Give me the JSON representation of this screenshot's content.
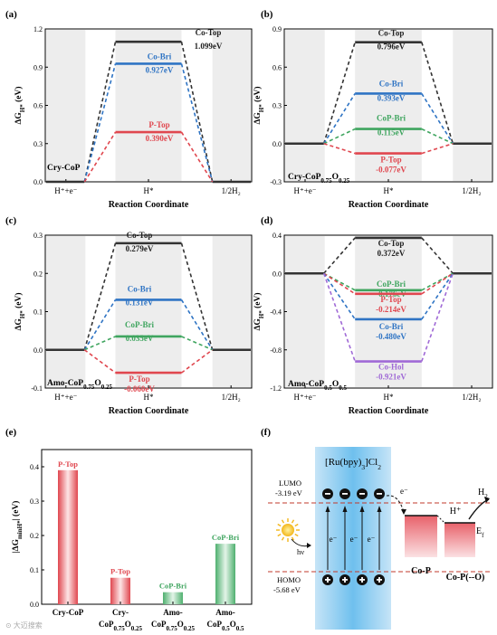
{
  "chart_data": [
    {
      "type": "line",
      "panel": "(a)",
      "system": "Cry-CoP",
      "xlabel": "Reaction Coordinate",
      "ylabel": "ΔG_H* (eV)",
      "x_ticks": [
        "H⁺+e⁻",
        "H*",
        "1/2H₂"
      ],
      "ylim": [
        0.0,
        1.2
      ],
      "y_ticks": [
        "0.0",
        "0.3",
        "0.6",
        "0.9",
        "1.2"
      ],
      "series": [
        {
          "name": "Co-Top",
          "value": 1.099,
          "label": "1.099eV",
          "color": "#333333"
        },
        {
          "name": "Co-Bri",
          "value": 0.927,
          "label": "0.927eV",
          "color": "#2f74c4"
        },
        {
          "name": "P-Top",
          "value": 0.39,
          "label": "0.390eV",
          "color": "#e0474f"
        }
      ]
    },
    {
      "type": "line",
      "panel": "(b)",
      "system": "Cry-CoP0.75O0.25",
      "xlabel": "Reaction Coordinate",
      "ylabel": "ΔG_H* (eV)",
      "x_ticks": [
        "H⁺+e⁻",
        "H*",
        "1/2H₂"
      ],
      "ylim": [
        -0.3,
        0.9
      ],
      "y_ticks": [
        "-0.3",
        "0.0",
        "0.3",
        "0.6",
        "0.9"
      ],
      "series": [
        {
          "name": "Co-Top",
          "value": 0.796,
          "label": "0.796eV",
          "color": "#333333"
        },
        {
          "name": "Co-Bri",
          "value": 0.393,
          "label": "0.393eV",
          "color": "#2f74c4"
        },
        {
          "name": "CoP-Bri",
          "value": 0.115,
          "label": "0.115eV",
          "color": "#3fa55f"
        },
        {
          "name": "P-Top",
          "value": -0.077,
          "label": "-0.077eV",
          "color": "#e0474f"
        }
      ]
    },
    {
      "type": "line",
      "panel": "(c)",
      "system": "Amo-CoP0.75O0.25",
      "xlabel": "Reaction Coordinate",
      "ylabel": "ΔG_H* (eV)",
      "x_ticks": [
        "H⁺+e⁻",
        "H*",
        "1/2H₂"
      ],
      "ylim": [
        -0.1,
        0.3
      ],
      "y_ticks": [
        "-0.1",
        "0.0",
        "0.1",
        "0.2",
        "0.3"
      ],
      "series": [
        {
          "name": "Co-Top",
          "value": 0.279,
          "label": "0.279eV",
          "color": "#333333"
        },
        {
          "name": "Co-Bri",
          "value": 0.131,
          "label": "0.131eV",
          "color": "#2f74c4"
        },
        {
          "name": "CoP-Bri",
          "value": 0.035,
          "label": "0.035eV",
          "color": "#3fa55f"
        },
        {
          "name": "P-Top",
          "value": -0.06,
          "label": "-0.060eV",
          "color": "#e0474f"
        }
      ]
    },
    {
      "type": "line",
      "panel": "(d)",
      "system": "Amo-CoP0.5O0.5",
      "xlabel": "Reaction Coordinate",
      "ylabel": "ΔG_H* (eV)",
      "x_ticks": [
        "H⁺+e⁻",
        "H*",
        "1/2H₂"
      ],
      "ylim": [
        -1.2,
        0.4
      ],
      "y_ticks": [
        "-1.2",
        "-0.8",
        "-0.4",
        "0.0",
        "0.4"
      ],
      "series": [
        {
          "name": "Co-Top",
          "value": 0.372,
          "label": "0.372eV",
          "color": "#333333"
        },
        {
          "name": "CoP-Bri",
          "value": -0.176,
          "label": "-0.176eV",
          "color": "#3fa55f"
        },
        {
          "name": "P-Top",
          "value": -0.214,
          "label": "-0.214eV",
          "color": "#e0474f"
        },
        {
          "name": "Co-Bri",
          "value": -0.48,
          "label": "-0.480eV",
          "color": "#2f74c4"
        },
        {
          "name": "Co-Hol",
          "value": -0.921,
          "label": "-0.921eV",
          "color": "#a06ad6"
        }
      ]
    },
    {
      "type": "bar",
      "panel": "(e)",
      "ylabel": "|ΔG_minH*| (eV)",
      "ylim": [
        0.0,
        0.45
      ],
      "y_ticks": [
        "0.0",
        "0.1",
        "0.2",
        "0.3",
        "0.4"
      ],
      "categories": [
        "Cry-CoP",
        "Cry-CoP0.75O0.25",
        "Amo-CoP0.75O0.25",
        "Amo-CoP0.5O0.5"
      ],
      "values": [
        0.39,
        0.077,
        0.035,
        0.176
      ],
      "bar_labels": [
        "P-Top",
        "P-Top",
        "CoP-Bri",
        "CoP-Bri"
      ],
      "colors": [
        "#e0474f",
        "#e0474f",
        "#3fa55f",
        "#3fa55f"
      ]
    }
  ],
  "panel_f": {
    "panel": "(f)",
    "title": "[Ru(bpy)3]Cl2",
    "lumo_label": "LUMO",
    "lumo_value": "-3.19 eV",
    "homo_label": "HOMO",
    "homo_value": "-5.68 eV",
    "light_label": "hν",
    "electron": "e⁻",
    "hole": "+",
    "products": [
      "Co-P",
      "Co-P(--O)"
    ],
    "proton": "H⁺",
    "hydrogen": "H₂",
    "fermi": "E_f"
  },
  "watermark": "⊙ 大迈搜索"
}
